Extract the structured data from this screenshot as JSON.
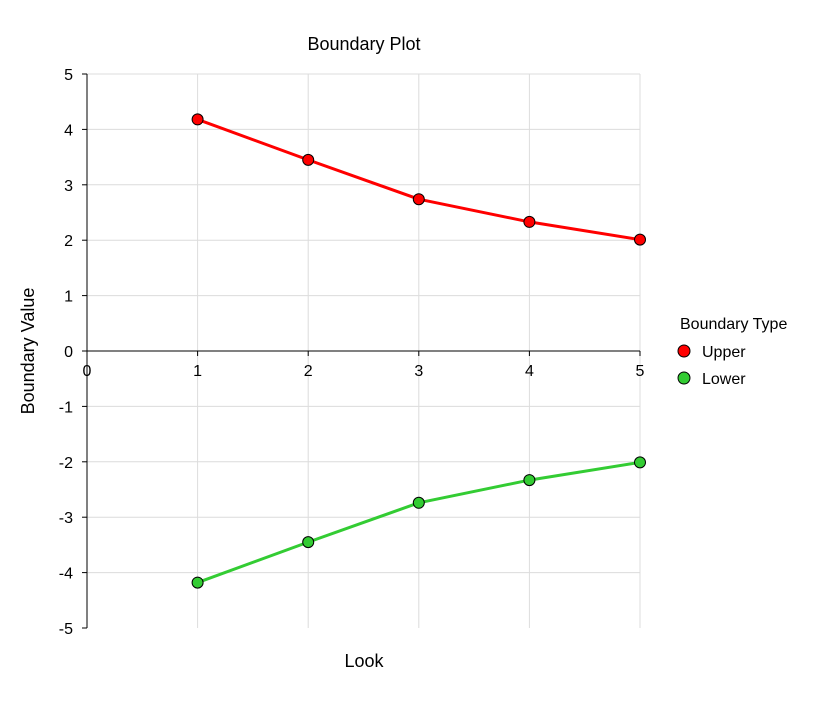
{
  "chart_data": {
    "type": "line",
    "title": "Boundary Plot",
    "xlabel": "Look",
    "ylabel": "Boundary Value",
    "xlim": [
      0,
      5
    ],
    "ylim": [
      -5,
      5
    ],
    "x_ticks": [
      "0",
      "1",
      "2",
      "3",
      "4",
      "5"
    ],
    "y_ticks": [
      "5",
      "4",
      "3",
      "2",
      "1",
      "0",
      "-1",
      "-2",
      "-3",
      "-4",
      "-5"
    ],
    "grid": true,
    "legend": {
      "title": "Boundary Type",
      "placement": "right"
    },
    "x": [
      1,
      2,
      3,
      4,
      5
    ],
    "series": [
      {
        "name": "Upper",
        "color": "#ff0000",
        "values": [
          4.18,
          3.45,
          2.74,
          2.33,
          2.01
        ]
      },
      {
        "name": "Lower",
        "color": "#33cc33",
        "values": [
          -4.18,
          -3.45,
          -2.74,
          -2.33,
          -2.01
        ]
      }
    ]
  }
}
